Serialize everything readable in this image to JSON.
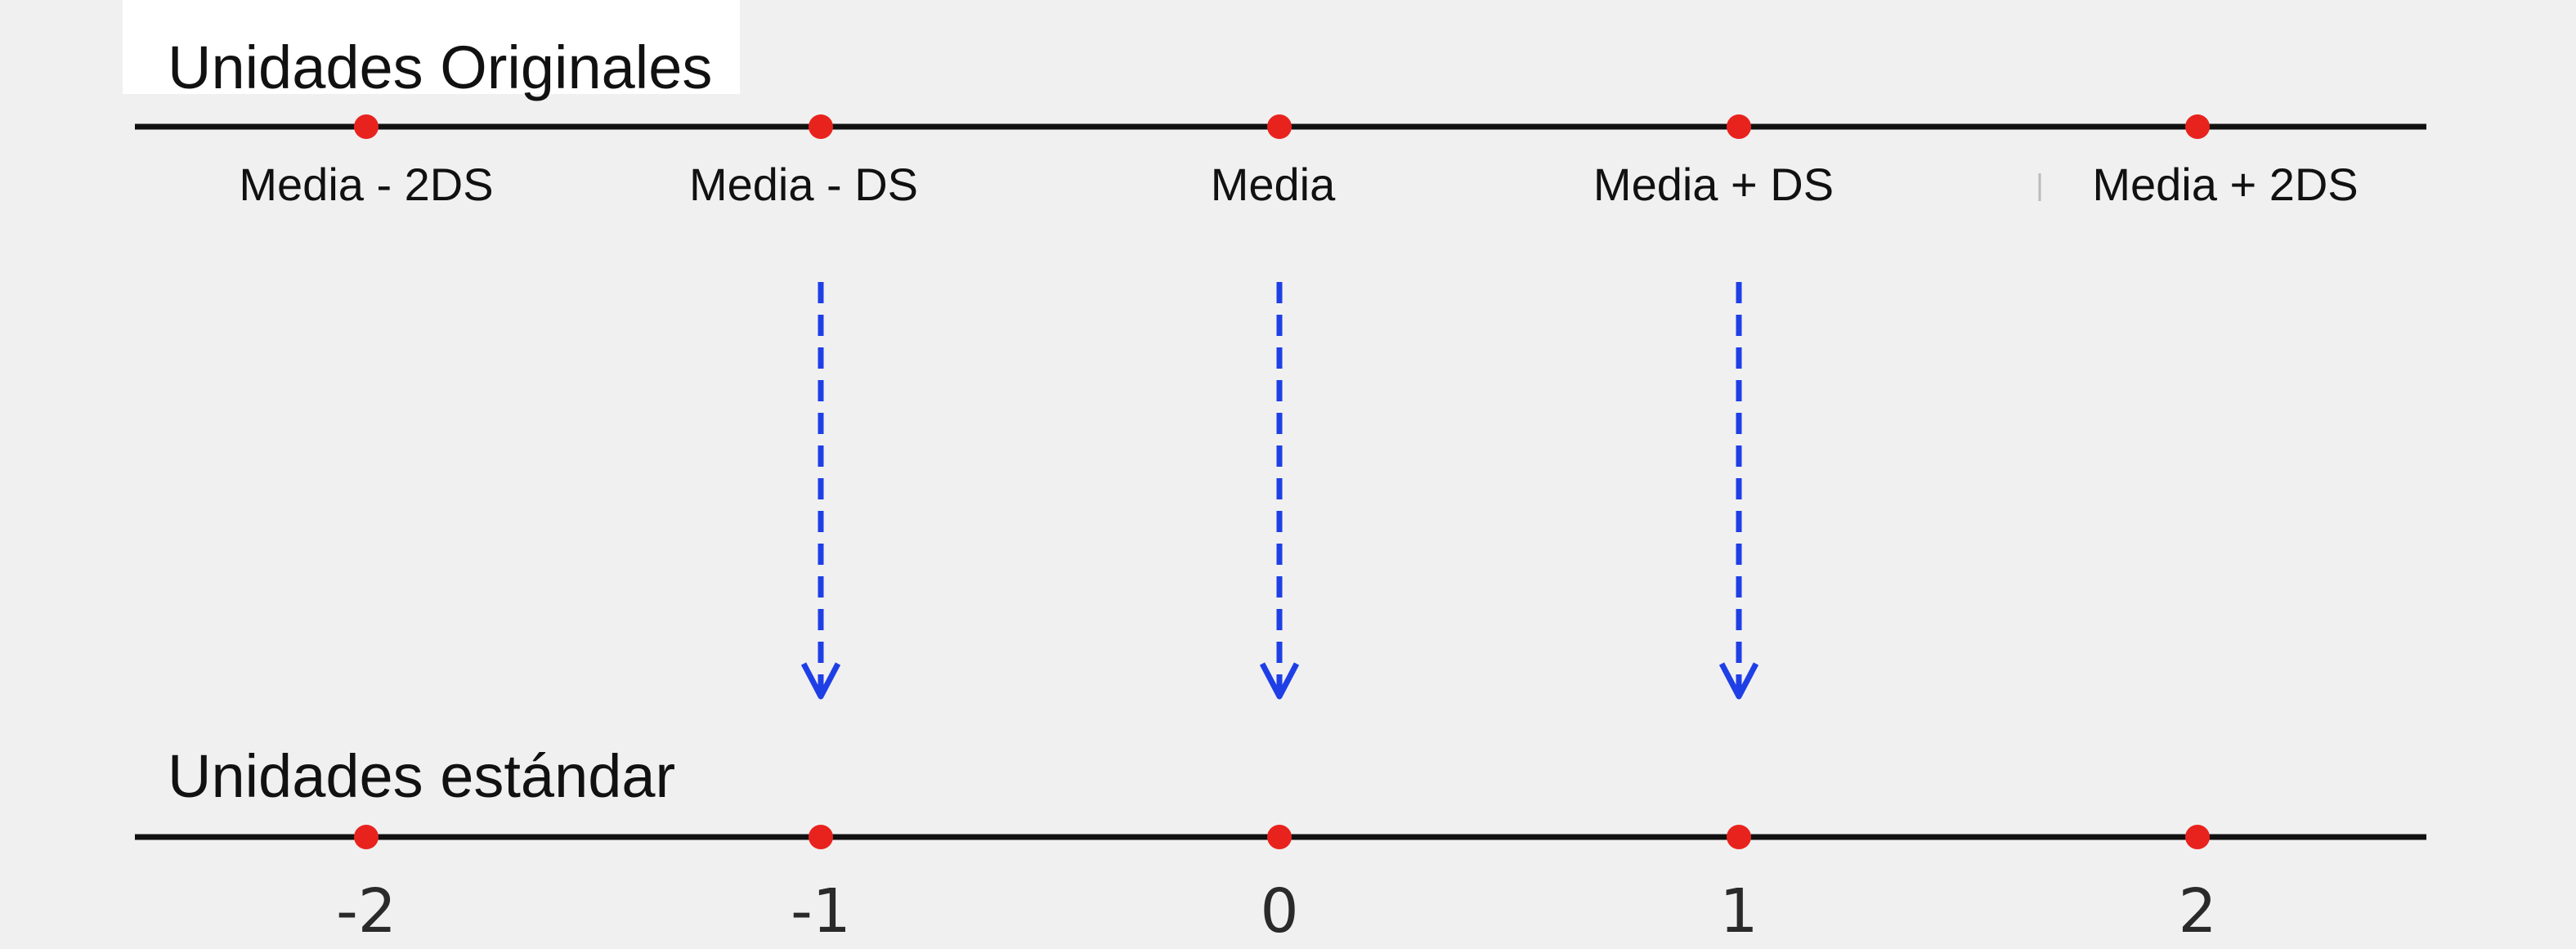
{
  "top_axis": {
    "title": "Unidades Originales",
    "labels": [
      "Media - 2DS",
      "Media - DS",
      "Media",
      "Media + DS",
      "Media + 2DS"
    ]
  },
  "bottom_axis": {
    "title": "Unidades estándar",
    "labels": [
      "-2",
      "-1",
      "0",
      "1",
      "2"
    ]
  },
  "colors": {
    "axis_line": "#111111",
    "point": "#e8231e",
    "arrow": "#1f3fe6",
    "background": "#f0f0f0"
  }
}
